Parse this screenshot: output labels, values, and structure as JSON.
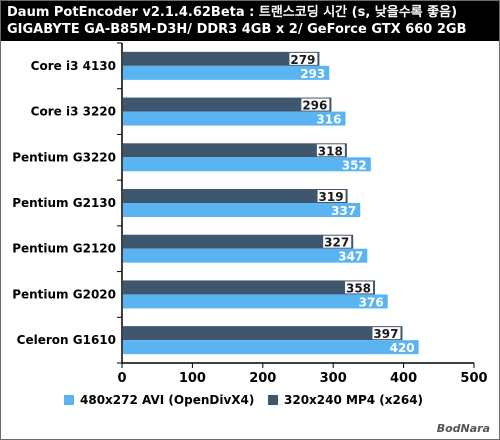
{
  "header": {
    "title_line1": "Daum PotEncoder v2.1.4.62Beta : 트랜스코딩 시간 (s, 낮을수록 좋음)",
    "title_line2": "GIGABYTE GA-B85M-D3H/ DDR3 4GB x 2/ GeForce GTX 660 2GB"
  },
  "watermark": "BodNara",
  "colors": {
    "series_dark": "#3f566f",
    "series_light": "#5ab4f2",
    "header_bg": "#000000"
  },
  "chart_data": {
    "type": "bar",
    "orientation": "horizontal",
    "title": "Daum PotEncoder v2.1.4.62Beta : 트랜스코딩 시간 (s, 낮을수록 좋음)",
    "subtitle": "GIGABYTE GA-B85M-D3H/ DDR3 4GB x 2/ GeForce GTX 660 2GB",
    "categories": [
      "Core i3 4130",
      "Core i3 3220",
      "Pentium G3220",
      "Pentium G2130",
      "Pentium G2120",
      "Pentium G2020",
      "Celeron G1610"
    ],
    "series": [
      {
        "name": "320x240 MP4 (x264)",
        "values": [
          279,
          296,
          318,
          319,
          327,
          358,
          397
        ],
        "color": "#3f566f"
      },
      {
        "name": "480x272 AVI (OpenDivX4)",
        "values": [
          293,
          316,
          352,
          337,
          347,
          376,
          420
        ],
        "color": "#5ab4f2"
      }
    ],
    "legend_order": [
      "480x272 AVI (OpenDivX4)",
      "320x240 MP4 (x264)"
    ],
    "legend_placement": "bottom",
    "xlim": [
      0,
      500
    ],
    "xticks": [
      "0",
      "100",
      "200",
      "300",
      "400",
      "500"
    ],
    "grid": false,
    "xlabel": "",
    "ylabel": ""
  }
}
